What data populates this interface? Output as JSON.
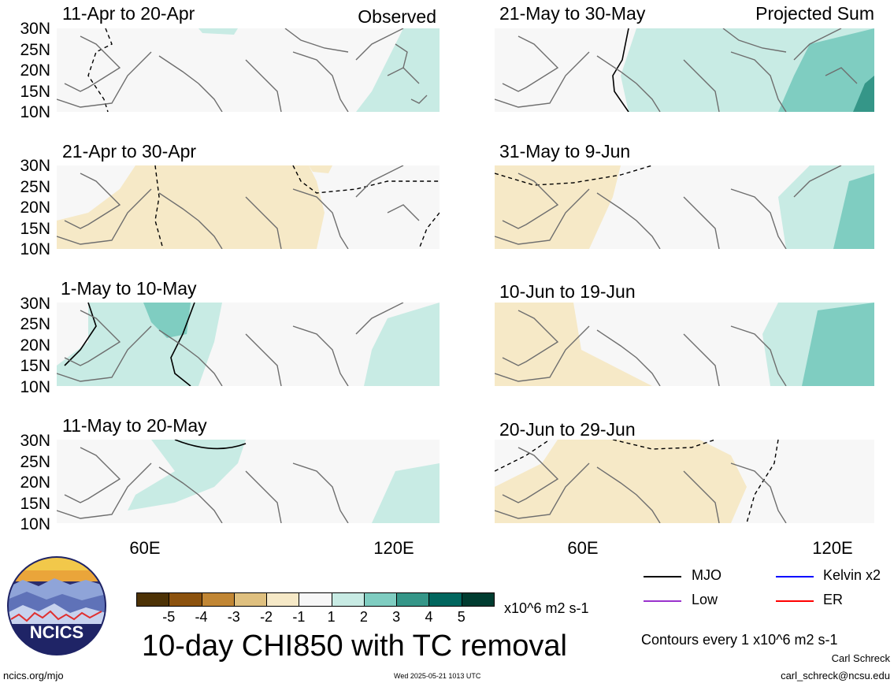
{
  "panels": [
    {
      "title": "11-Apr to 20-Apr",
      "corner": "Observed"
    },
    {
      "title": "21-May to 30-May",
      "corner": "Projected Sum"
    },
    {
      "title": "21-Apr to 30-Apr",
      "corner": ""
    },
    {
      "title": "31-May to 9-Jun",
      "corner": ""
    },
    {
      "title": "1-May to 10-May",
      "corner": ""
    },
    {
      "title": "10-Jun to 19-Jun",
      "corner": ""
    },
    {
      "title": "11-May to 20-May",
      "corner": ""
    },
    {
      "title": "20-Jun to 29-Jun",
      "corner": ""
    }
  ],
  "lat_labels": [
    "30N",
    "25N",
    "20N",
    "15N",
    "10N"
  ],
  "lon_labels": [
    "60E",
    "120E"
  ],
  "colorbar": {
    "colors": [
      "#4d3206",
      "#8c520e",
      "#c18634",
      "#dfc07f",
      "#f6e9c7",
      "#f7f7f7",
      "#c8ebe4",
      "#7fcdc1",
      "#359688",
      "#01665e",
      "#003c30"
    ],
    "labels": [
      "-5",
      "-4",
      "-3",
      "-2",
      "-1",
      "1",
      "2",
      "3",
      "4",
      "5"
    ],
    "units": "x10^6 m2 s-1"
  },
  "legend": {
    "items": [
      {
        "label": "MJO",
        "color": "#000000"
      },
      {
        "label": "Kelvin x2",
        "color": "#0000ff"
      },
      {
        "label": "Low",
        "color": "#9a32cd"
      },
      {
        "label": "ER",
        "color": "#ff0000"
      }
    ],
    "contours": "Contours every 1 x10^6 m2 s-1"
  },
  "title": "10-day CHI850 with TC removal",
  "logo_text": "NCICS",
  "footer": {
    "left": "ncics.org/mjo",
    "center": "Wed 2025-05-21 1013 UTC",
    "author": "Carl Schreck",
    "email": "carl_schreck@ncsu.edu"
  }
}
